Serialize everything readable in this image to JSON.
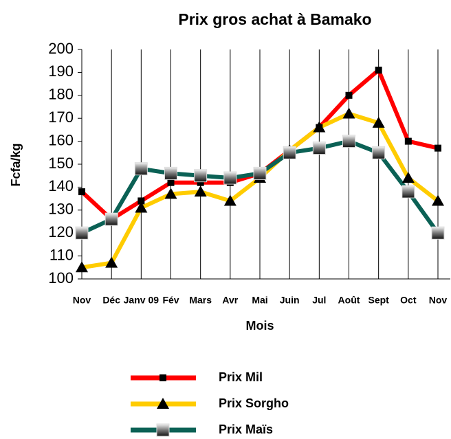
{
  "chart_data": {
    "type": "line",
    "title": "Prix  gros achat à Bamako",
    "x_label": "Mois",
    "y_label": "Fcfa/kg",
    "categories": [
      "Nov",
      "Déc",
      "Janv 09",
      "Fév",
      "Mars",
      "Avr",
      "Mai",
      "Juin",
      "Jul",
      "Août",
      "Sept",
      "Oct",
      "Nov"
    ],
    "series": [
      {
        "name": "Prix Mil",
        "color": "#ff0000",
        "marker": "square",
        "values": [
          138,
          126,
          134,
          142,
          142,
          142,
          146,
          156,
          166,
          180,
          191,
          160,
          157
        ]
      },
      {
        "name": "Prix Sorgho",
        "color": "#ffcc00",
        "marker": "triangle",
        "values": [
          105,
          107,
          131,
          137,
          138,
          134,
          144,
          156,
          166,
          172,
          168,
          144,
          134
        ]
      },
      {
        "name": "Prix Maïs",
        "color": "#0b6155",
        "marker": "graysquare",
        "values": [
          120,
          126,
          148,
          146,
          145,
          144,
          146,
          155,
          157,
          160,
          155,
          138,
          120
        ]
      }
    ],
    "ylim": [
      100,
      200
    ],
    "yticks": [
      100,
      110,
      120,
      130,
      140,
      150,
      160,
      170,
      180,
      190,
      200
    ],
    "grid": "x",
    "legend": "bottom"
  }
}
